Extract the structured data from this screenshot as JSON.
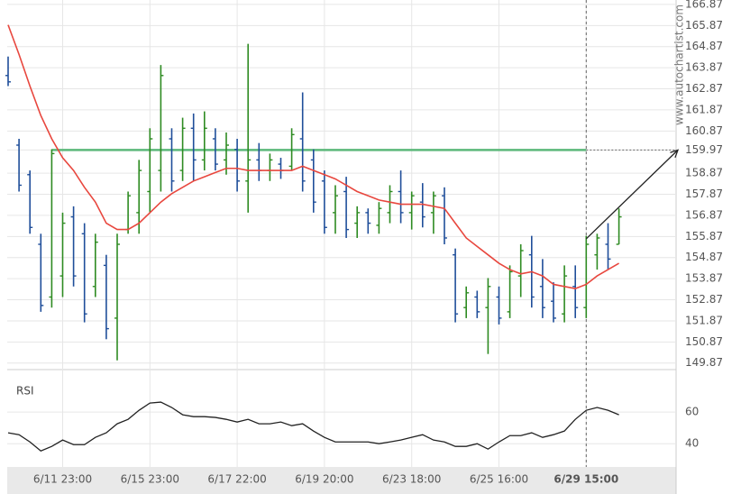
{
  "watermark": "www.autochartist.com",
  "chart_data": [
    {
      "type": "ohlc",
      "categories": [
        null,
        null,
        null,
        null,
        null,
        "6/11 23:00",
        null,
        null,
        null,
        null,
        null,
        null,
        null,
        "6/15 23:00",
        null,
        null,
        null,
        null,
        null,
        null,
        null,
        "6/17 22:00",
        null,
        null,
        null,
        null,
        null,
        null,
        null,
        "6/19 20:00",
        null,
        null,
        null,
        null,
        null,
        null,
        null,
        "6/23 18:00",
        null,
        null,
        null,
        null,
        null,
        null,
        null,
        "6/25 16:00",
        null,
        null,
        null,
        null,
        null,
        null,
        null,
        "6/29 15:00",
        null,
        null,
        null
      ],
      "open": [
        163.5,
        160.2,
        158.8,
        155.5,
        153.0,
        154.0,
        156.8,
        156.0,
        153.5,
        154.5,
        152.0,
        156.2,
        157.0,
        158.0,
        159.0,
        160.5,
        159.0,
        161.0,
        159.5,
        160.5,
        159.5,
        160.0,
        158.5,
        159.5,
        159.0,
        159.3,
        159.2,
        160.5,
        159.5,
        158.5,
        157.0,
        158.0,
        156.5,
        157.0,
        156.4,
        157.0,
        158.0,
        157.0,
        157.5,
        157.0,
        157.8,
        155.0,
        152.5,
        153.0,
        152.5,
        153.0,
        152.3,
        154.0,
        155.0,
        153.5,
        152.8,
        152.2,
        153.5,
        152.5,
        155.0,
        155.5,
        155.5
      ],
      "high": [
        164.4,
        160.5,
        159.0,
        156.0,
        160.0,
        157.0,
        157.3,
        156.5,
        156.0,
        155.0,
        156.0,
        158.0,
        159.5,
        161.0,
        164.0,
        161.0,
        161.5,
        161.7,
        161.8,
        161.0,
        160.8,
        160.5,
        165.0,
        160.3,
        159.8,
        159.6,
        161.0,
        162.7,
        160.0,
        159.0,
        158.3,
        158.7,
        157.3,
        157.2,
        157.5,
        158.3,
        159.0,
        158.0,
        158.4,
        158.0,
        158.2,
        155.3,
        153.5,
        153.3,
        153.9,
        153.5,
        154.5,
        155.5,
        155.9,
        154.8,
        153.7,
        154.5,
        154.5,
        155.9,
        156.0,
        156.5,
        157.2
      ],
      "low": [
        163.0,
        158.0,
        156.0,
        152.3,
        152.5,
        153.0,
        153.5,
        151.8,
        153.0,
        151.0,
        150.0,
        156.0,
        156.0,
        157.0,
        158.0,
        158.0,
        158.5,
        158.5,
        159.0,
        159.0,
        158.8,
        158.0,
        157.0,
        158.5,
        158.5,
        158.6,
        159.0,
        158.0,
        157.0,
        156.0,
        156.0,
        155.8,
        155.8,
        156.0,
        156.0,
        156.5,
        156.5,
        156.2,
        156.3,
        156.0,
        155.5,
        151.8,
        152.0,
        152.0,
        150.3,
        151.7,
        152.0,
        153.0,
        152.5,
        152.0,
        151.8,
        151.8,
        152.0,
        152.0,
        154.3,
        154.3,
        155.5
      ],
      "close": [
        163.2,
        158.3,
        156.3,
        152.6,
        159.8,
        156.5,
        154.0,
        152.2,
        155.6,
        151.5,
        155.5,
        157.8,
        159.0,
        160.5,
        163.5,
        158.5,
        161.0,
        159.5,
        161.0,
        159.3,
        160.2,
        158.5,
        159.5,
        159.0,
        159.5,
        159.0,
        160.7,
        158.5,
        157.5,
        156.3,
        157.8,
        156.2,
        157.0,
        156.5,
        157.2,
        158.0,
        157.0,
        157.8,
        156.8,
        157.8,
        155.8,
        152.2,
        153.2,
        152.3,
        153.5,
        152.0,
        154.2,
        155.2,
        153.0,
        152.5,
        152.0,
        154.0,
        152.5,
        155.5,
        155.8,
        154.8,
        156.8
      ],
      "up_color": "#2e8b22",
      "down_color": "#1f4e9a",
      "overlay": {
        "color": "#e8473e",
        "values": [
          165.9,
          164.5,
          163.0,
          161.6,
          160.5,
          159.6,
          159.0,
          158.2,
          157.5,
          156.5,
          156.2,
          156.2,
          156.5,
          157.0,
          157.5,
          157.9,
          158.2,
          158.5,
          158.7,
          158.9,
          159.1,
          159.1,
          159.0,
          159.0,
          159.0,
          159.0,
          159.0,
          159.2,
          159.0,
          158.8,
          158.6,
          158.3,
          158.0,
          157.8,
          157.6,
          157.5,
          157.4,
          157.4,
          157.4,
          157.3,
          157.2,
          156.5,
          155.8,
          155.4,
          155.0,
          154.6,
          154.3,
          154.1,
          154.2,
          154.0,
          153.6,
          153.5,
          153.4,
          153.6,
          154.0,
          154.3,
          154.6
        ]
      },
      "resistance": {
        "color": "#5cb87a",
        "value": 159.97
      },
      "projection": {
        "from": 155.76,
        "to": 159.97,
        "color": "#222"
      },
      "ylim": [
        149.56,
        167.08
      ],
      "yticks": [
        166.87,
        165.87,
        164.87,
        163.87,
        162.87,
        161.87,
        160.87,
        159.97,
        158.87,
        157.87,
        156.87,
        155.87,
        154.87,
        153.87,
        152.87,
        151.87,
        150.87,
        149.87
      ],
      "grid": true
    },
    {
      "type": "line",
      "title": "RSI",
      "color": "#222",
      "values": [
        46.9,
        45.7,
        41.1,
        35.4,
        38.3,
        42.3,
        39.4,
        39.4,
        44.0,
        46.9,
        52.6,
        55.4,
        61.1,
        65.7,
        66.3,
        62.9,
        58.3,
        57.1,
        57.1,
        56.6,
        55.4,
        53.7,
        55.4,
        52.6,
        52.6,
        53.7,
        51.4,
        52.6,
        48.0,
        44.0,
        41.1,
        41.1,
        41.1,
        41.1,
        40.0,
        41.1,
        42.3,
        44.0,
        45.7,
        42.3,
        41.1,
        38.3,
        38.3,
        40.0,
        36.6,
        41.1,
        45.1,
        45.1,
        46.9,
        44.0,
        45.7,
        48.0,
        55.4,
        61.1,
        62.9,
        61.1,
        58.3
      ],
      "ylim": [
        27,
        84
      ],
      "yticks": [
        40,
        60
      ],
      "grid": true
    }
  ]
}
